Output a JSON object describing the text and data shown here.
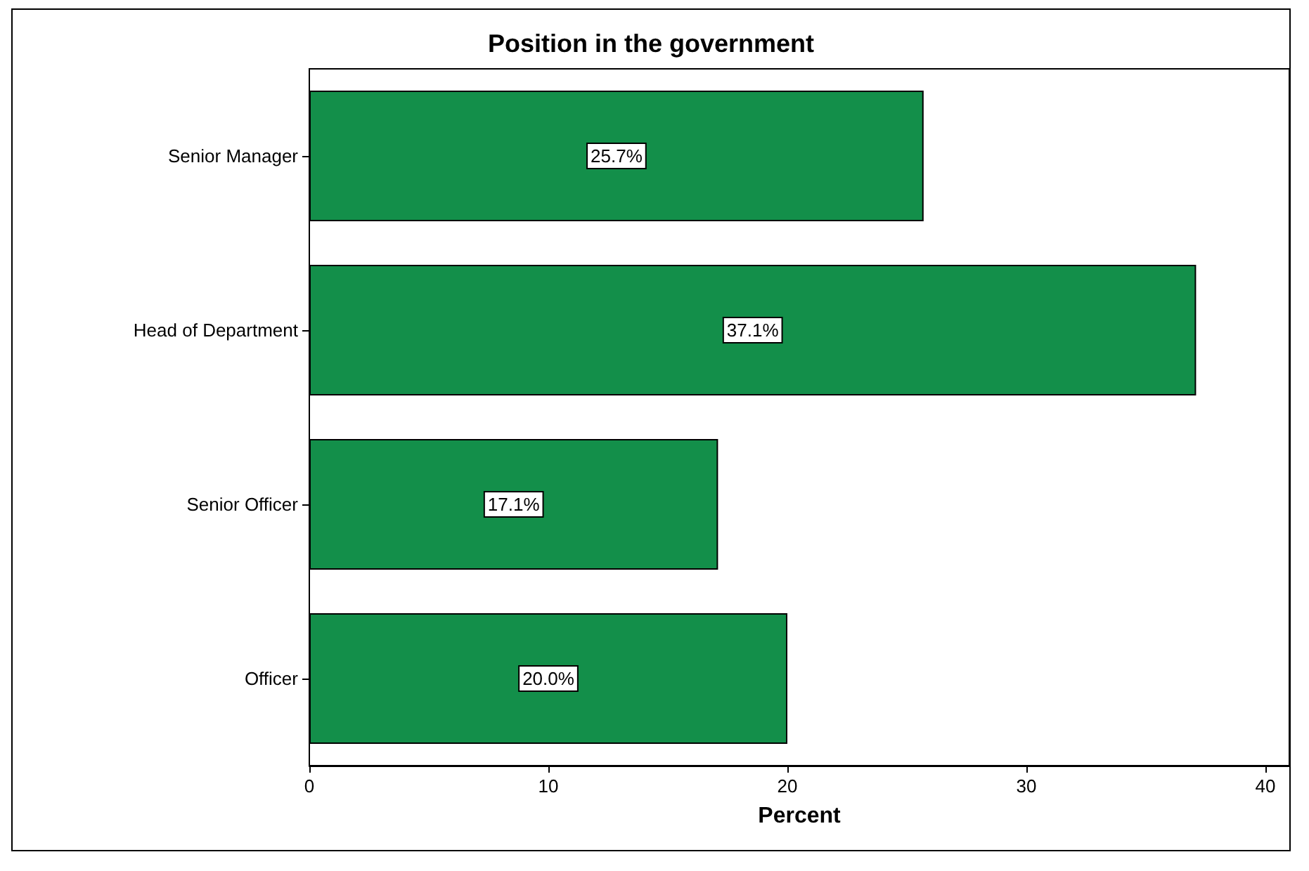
{
  "chart_data": {
    "type": "bar",
    "orientation": "horizontal",
    "title": "Position in the government",
    "xlabel": "Percent",
    "categories": [
      "Senior Manager",
      "Head of Department",
      "Senior Officer",
      "Officer"
    ],
    "values": [
      25.7,
      37.1,
      17.1,
      20.0
    ],
    "value_labels": [
      "25.7%",
      "37.1%",
      "17.1%",
      "20.0%"
    ],
    "color": "#138f4a",
    "xlim": [
      0,
      41
    ],
    "xticks": [
      0,
      10,
      20,
      30,
      40
    ],
    "grid": false
  }
}
